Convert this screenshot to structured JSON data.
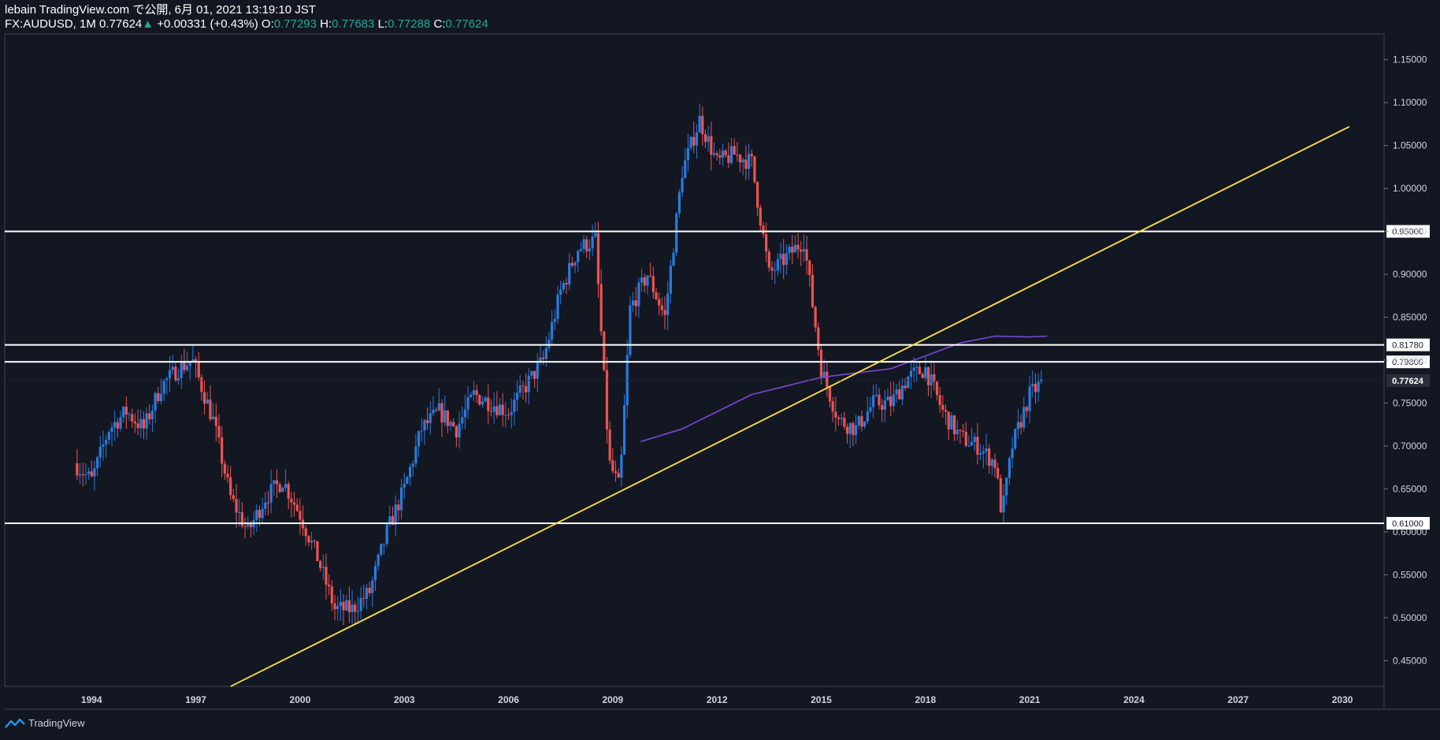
{
  "header": {
    "publish_line": "lebain TradingView.com で公開, 6月 01, 2021 13:19:10 JST",
    "symbol": "FX:AUDUSD, 1M",
    "last": "0.77624",
    "change_arrow": "▲",
    "change": "+0.00331 (+0.43%)",
    "o_label": "O:",
    "o_value": "0.77293",
    "h_label": "H:",
    "h_value": "0.77683",
    "l_label": "L:",
    "l_value": "0.77288",
    "c_label": "C:",
    "c_value": "0.77624"
  },
  "footer": {
    "brand": "TradingView",
    "logo_icon": "tradingview-logo-icon"
  },
  "colors": {
    "background": "#131722",
    "up_candle": "#2a7be0",
    "down_candle": "#ef5350",
    "ma_line": "#7b47d6",
    "trendline": "#ffeb3b",
    "level_line": "#ffffff",
    "text_up": "#26a69a"
  },
  "chart_data": {
    "type": "line",
    "title": "",
    "xlabel": "",
    "ylabel": "",
    "ylim": [
      0.42,
      1.18
    ],
    "xlim": [
      1991.5,
      2031.2
    ],
    "x_ticks": [
      "1994",
      "1997",
      "2000",
      "2003",
      "2006",
      "2009",
      "2012",
      "2015",
      "2018",
      "2021",
      "2024",
      "2027",
      "2030"
    ],
    "y_ticks": [
      "1.15000",
      "1.10000",
      "1.05000",
      "1.00000",
      "0.95000",
      "0.90000",
      "0.85000",
      "0.80000",
      "0.75000",
      "0.70000",
      "0.65000",
      "0.60000",
      "0.55000",
      "0.50000",
      "0.45000"
    ],
    "grid": false,
    "series": [
      {
        "kind": "candlestick_monthly_close",
        "x": [
          1993.5,
          1994.0,
          1994.5,
          1995.0,
          1995.5,
          1996.0,
          1996.5,
          1996.9,
          1997.5,
          1998.0,
          1998.5,
          1999.0,
          1999.5,
          2000.0,
          2000.5,
          2001.0,
          2001.5,
          2002.0,
          2002.5,
          2003.0,
          2003.5,
          2004.0,
          2004.5,
          2005.0,
          2005.5,
          2006.0,
          2006.5,
          2007.0,
          2007.5,
          2008.0,
          2008.5,
          2008.9,
          2009.2,
          2009.5,
          2010.0,
          2010.5,
          2011.0,
          2011.5,
          2012.0,
          2012.5,
          2013.0,
          2013.5,
          2014.0,
          2014.5,
          2015.0,
          2015.5,
          2016.0,
          2016.5,
          2017.0,
          2017.5,
          2018.0,
          2018.5,
          2019.0,
          2019.5,
          2020.0,
          2020.2,
          2020.5,
          2021.0,
          2021.4
        ],
        "values": [
          0.68,
          0.66,
          0.72,
          0.74,
          0.72,
          0.77,
          0.79,
          0.8,
          0.73,
          0.64,
          0.6,
          0.64,
          0.66,
          0.62,
          0.57,
          0.51,
          0.51,
          0.53,
          0.6,
          0.65,
          0.72,
          0.74,
          0.72,
          0.76,
          0.75,
          0.74,
          0.77,
          0.8,
          0.88,
          0.93,
          0.94,
          0.68,
          0.65,
          0.86,
          0.9,
          0.85,
          1.02,
          1.08,
          1.03,
          1.04,
          1.03,
          0.9,
          0.92,
          0.94,
          0.79,
          0.73,
          0.72,
          0.75,
          0.75,
          0.78,
          0.79,
          0.74,
          0.71,
          0.7,
          0.68,
          0.62,
          0.7,
          0.76,
          0.776
        ]
      },
      {
        "kind": "moving_average",
        "x": [
          2009.8,
          2011.0,
          2012.0,
          2013.0,
          2014.0,
          2015.0,
          2016.0,
          2017.0,
          2018.0,
          2019.0,
          2020.0,
          2021.0,
          2021.5
        ],
        "values": [
          0.705,
          0.72,
          0.74,
          0.76,
          0.77,
          0.78,
          0.785,
          0.79,
          0.805,
          0.82,
          0.828,
          0.827,
          0.828
        ]
      }
    ],
    "trendline": {
      "x": [
        1998.0,
        2030.2
      ],
      "values": [
        0.42,
        1.072
      ]
    },
    "horizontal_levels": [
      {
        "value": 0.95,
        "label": "0.95000"
      },
      {
        "value": 0.8178,
        "label": "0.81780"
      },
      {
        "value": 0.798,
        "label": "0.79800"
      },
      {
        "value": 0.61,
        "label": "0.61000"
      }
    ],
    "last_price": {
      "value": 0.77624,
      "label": "0.77624"
    }
  }
}
